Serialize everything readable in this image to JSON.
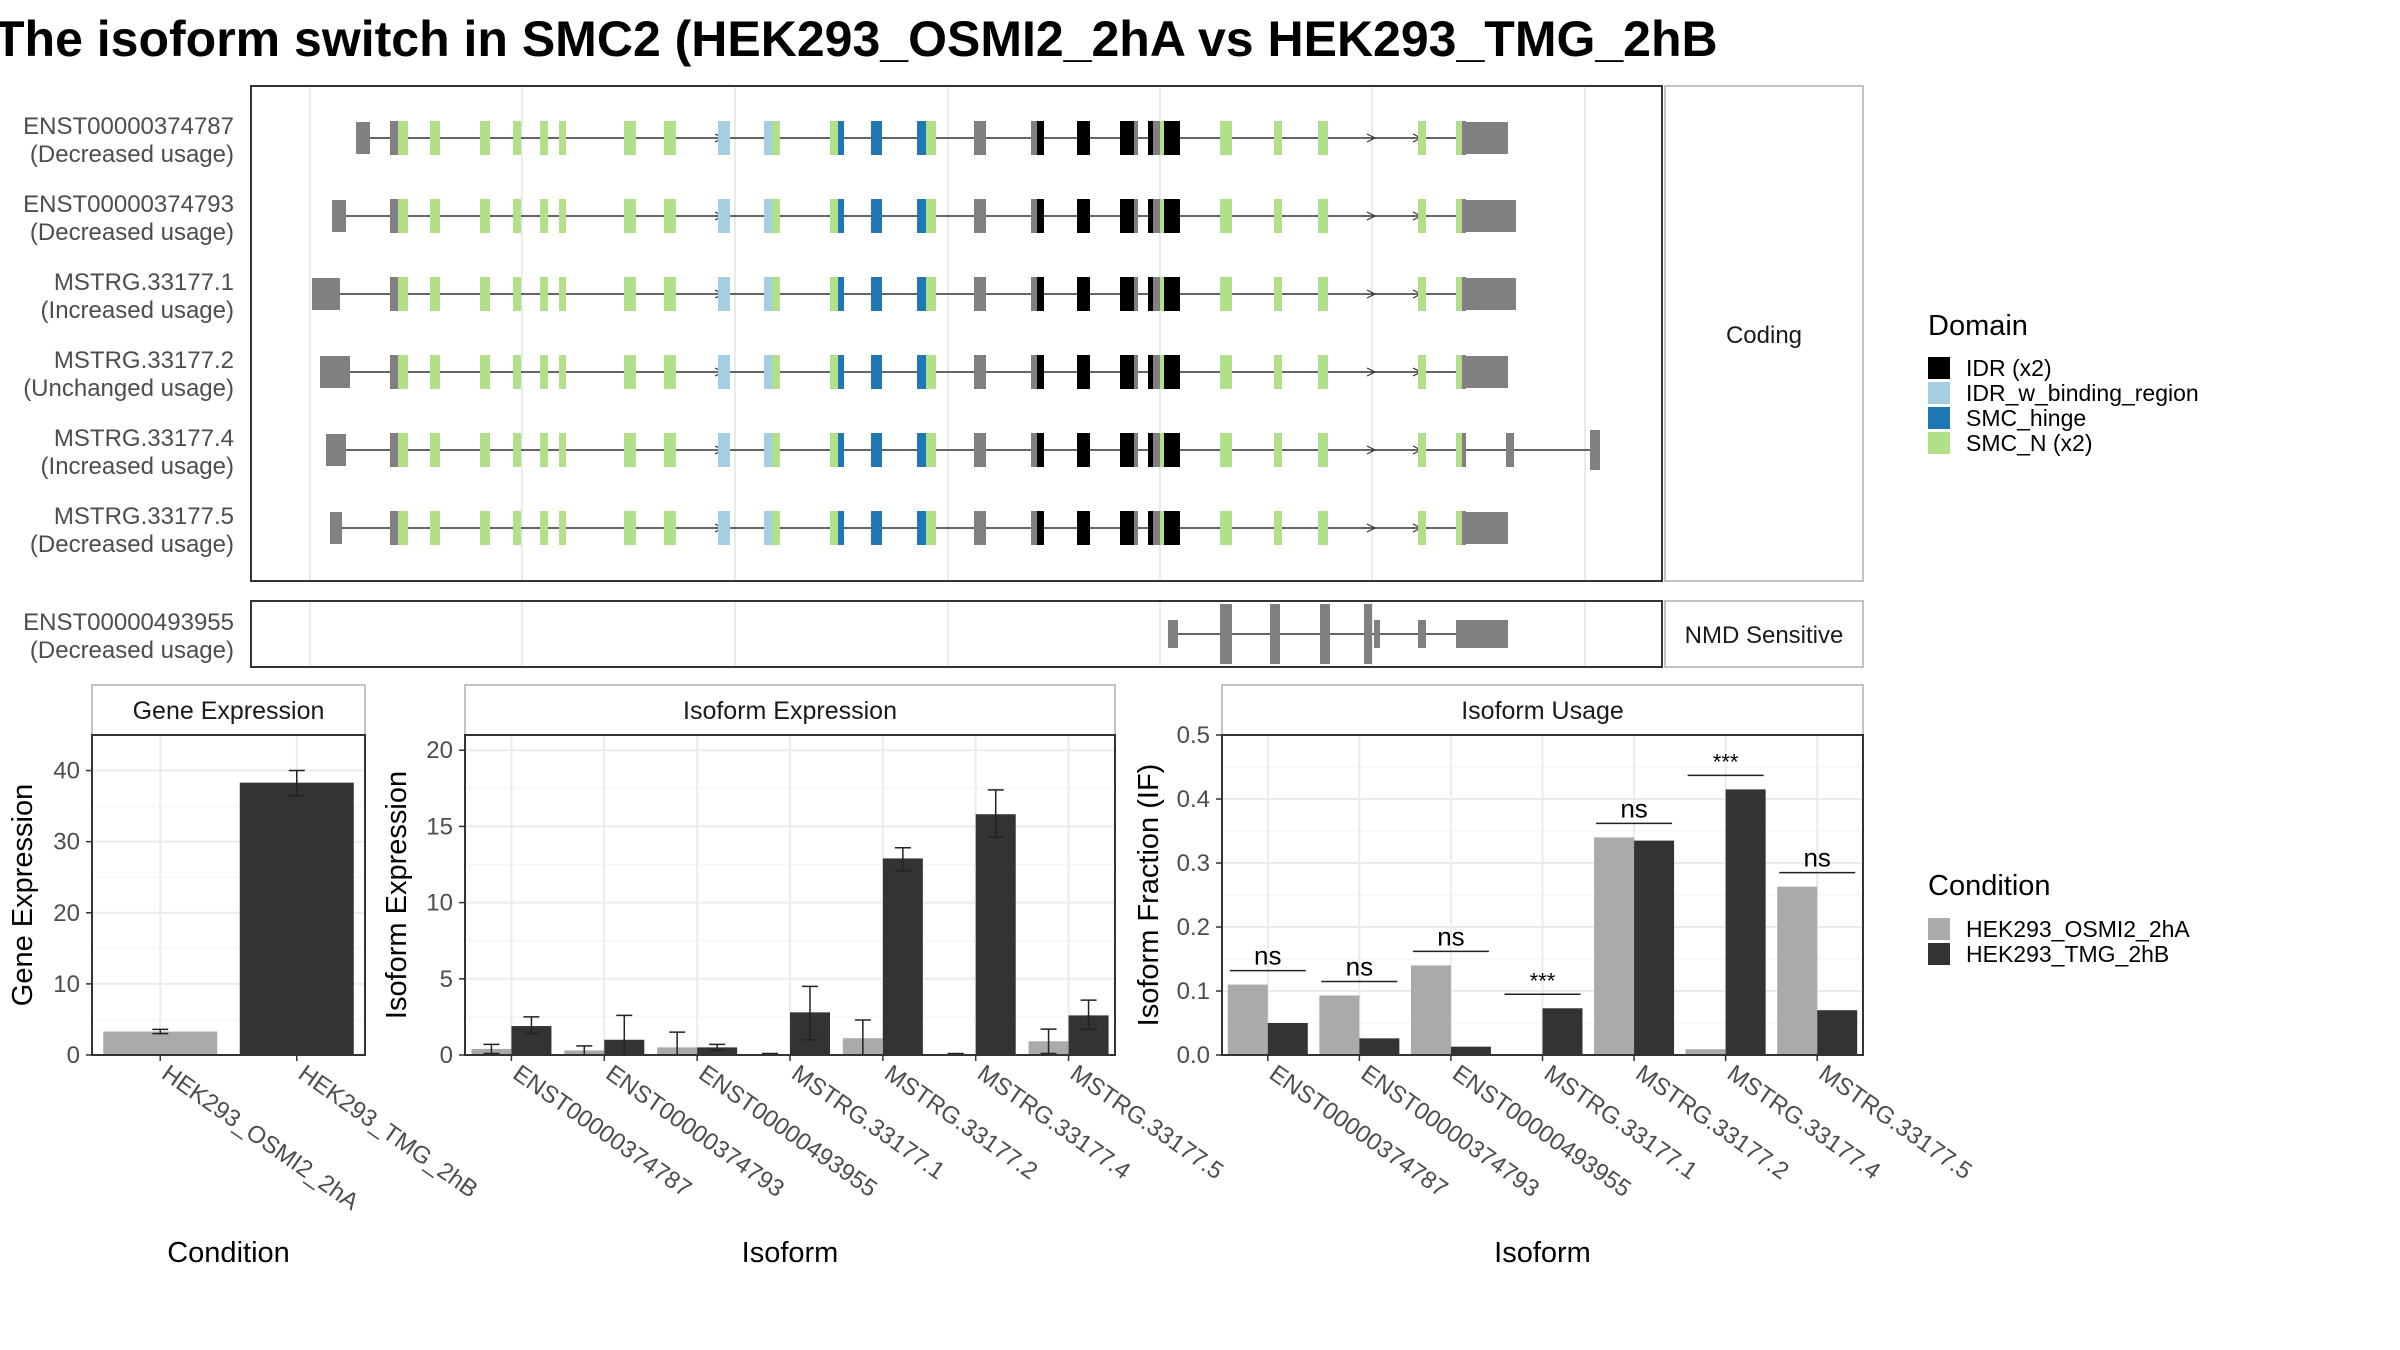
{
  "title": "The isoform switch in SMC2 (HEK293_OSMI2_2hA vs HEK293_TMG_2hB",
  "colors": {
    "IDR": "#000000",
    "IDR_w_binding_region": "#a6cee3",
    "SMC_hinge": "#1f78b4",
    "SMC_N": "#b2df8a",
    "exon": "#808080",
    "cond1": "#aaaaaa",
    "cond2": "#333333",
    "panel_border": "#333333",
    "strip_border": "#b0b0b0",
    "grid": "#ebebeb"
  },
  "structure": {
    "facets": [
      "Coding",
      "NMD Sensitive"
    ],
    "coding_isoforms": [
      {
        "id": "ENST00000374787",
        "usage": "(Decreased usage)"
      },
      {
        "id": "ENST00000374793",
        "usage": "(Decreased usage)"
      },
      {
        "id": "MSTRG.33177.1",
        "usage": "(Increased usage)"
      },
      {
        "id": "MSTRG.33177.2",
        "usage": "(Unchanged usage)"
      },
      {
        "id": "MSTRG.33177.4",
        "usage": "(Increased usage)"
      },
      {
        "id": "MSTRG.33177.5",
        "usage": "(Decreased usage)"
      }
    ],
    "nmd_isoforms": [
      {
        "id": "ENST00000493955",
        "usage": "(Decreased usage)"
      }
    ]
  },
  "legend_domain": {
    "title": "Domain",
    "items": [
      {
        "label": "IDR (x2)",
        "color": "#000000"
      },
      {
        "label": "IDR_w_binding_region",
        "color": "#a6cee3"
      },
      {
        "label": "SMC_hinge",
        "color": "#1f78b4"
      },
      {
        "label": "SMC_N (x2)",
        "color": "#b2df8a"
      }
    ]
  },
  "legend_condition": {
    "title": "Condition",
    "items": [
      {
        "label": "HEK293_OSMI2_2hA",
        "color": "#aaaaaa"
      },
      {
        "label": "HEK293_TMG_2hB",
        "color": "#333333"
      }
    ]
  },
  "chart_data": [
    {
      "type": "bar",
      "title": "Gene Expression",
      "xlabel": "Condition",
      "ylabel": "Gene Expression",
      "ylim": [
        0,
        45
      ],
      "yticks": [
        0,
        10,
        20,
        30,
        40
      ],
      "categories": [
        "HEK293_OSMI2_2hA",
        "HEK293_TMG_2hB"
      ],
      "values": [
        3.3,
        38.3
      ],
      "errors": [
        [
          3.0,
          3.6
        ],
        [
          36.5,
          40.0
        ]
      ]
    },
    {
      "type": "bar",
      "title": "Isoform Expression",
      "xlabel": "Isoform",
      "ylabel": "Isoform Expression",
      "ylim": [
        0,
        21
      ],
      "yticks": [
        0,
        5,
        10,
        15,
        20
      ],
      "categories": [
        "ENST00000374787",
        "ENST00000374793",
        "ENST00000493955",
        "MSTRG.33177.1",
        "MSTRG.33177.2",
        "MSTRG.33177.4",
        "MSTRG.33177.5"
      ],
      "series": [
        {
          "name": "HEK293_OSMI2_2hA",
          "values": [
            0.4,
            0.3,
            0.5,
            0.05,
            1.1,
            0.05,
            0.9
          ],
          "errors": [
            [
              0.1,
              0.7
            ],
            [
              0.0,
              0.6
            ],
            [
              0.0,
              1.5
            ],
            [
              0.0,
              0.1
            ],
            [
              0.0,
              2.3
            ],
            [
              0.0,
              0.1
            ],
            [
              0.1,
              1.7
            ]
          ]
        },
        {
          "name": "HEK293_TMG_2hB",
          "values": [
            1.9,
            1.0,
            0.5,
            2.8,
            12.9,
            15.8,
            2.6
          ],
          "errors": [
            [
              1.4,
              2.5
            ],
            [
              0.0,
              2.6
            ],
            [
              0.3,
              0.7
            ],
            [
              1.0,
              4.5
            ],
            [
              12.1,
              13.6
            ],
            [
              14.3,
              17.4
            ],
            [
              1.7,
              3.6
            ]
          ]
        }
      ]
    },
    {
      "type": "bar",
      "title": "Isoform Usage",
      "xlabel": "Isoform",
      "ylabel": "Isoform Fraction (IF)",
      "ylim": [
        0,
        0.5
      ],
      "yticks": [
        0.0,
        0.1,
        0.2,
        0.3,
        0.4,
        0.5
      ],
      "categories": [
        "ENST00000374787",
        "ENST00000374793",
        "ENST00000493955",
        "MSTRG.33177.1",
        "MSTRG.33177.2",
        "MSTRG.33177.4",
        "MSTRG.33177.5"
      ],
      "series": [
        {
          "name": "HEK293_OSMI2_2hA",
          "values": [
            0.11,
            0.093,
            0.14,
            0.0,
            0.34,
            0.009,
            0.263
          ]
        },
        {
          "name": "HEK293_TMG_2hB",
          "values": [
            0.05,
            0.026,
            0.013,
            0.073,
            0.335,
            0.415,
            0.07
          ]
        }
      ],
      "significance": [
        "ns",
        "ns",
        "ns",
        "***",
        "ns",
        "***",
        "ns"
      ]
    }
  ]
}
